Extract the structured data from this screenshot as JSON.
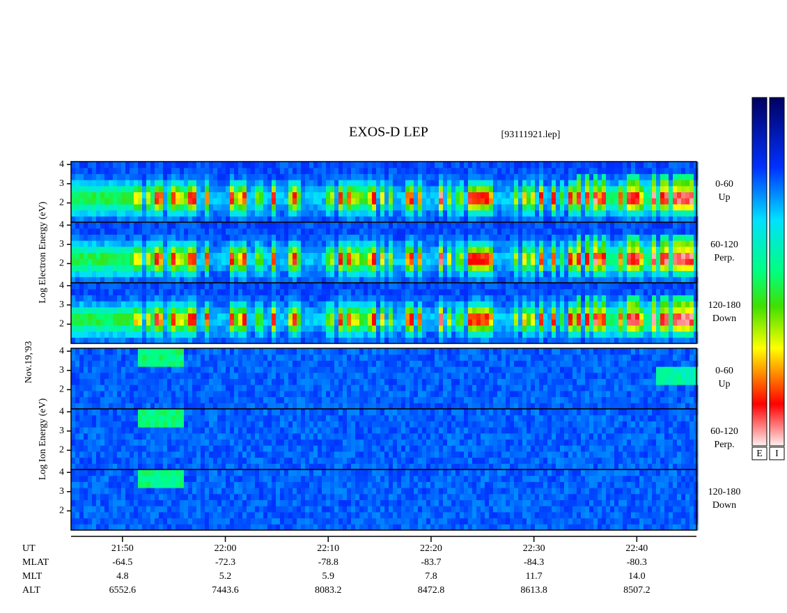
{
  "chart_data": {
    "type": "spectrogram",
    "title": "EXOS-D LEP",
    "subtitle": "[93111921.lep]",
    "date_label": "Nov.19,'93",
    "xlim": [
      1305,
      1365.8
    ],
    "xticks": [
      {
        "value": 1310,
        "label": "21:50"
      },
      {
        "value": 1320,
        "label": "22:00"
      },
      {
        "value": 1330,
        "label": "22:10"
      },
      {
        "value": 1340,
        "label": "22:20"
      },
      {
        "value": 1350,
        "label": "22:30"
      },
      {
        "value": 1360,
        "label": "22:40"
      }
    ],
    "groups": [
      {
        "ylabel": "Log  Electron  Energy (eV)",
        "species": "electron",
        "panels": [
          {
            "ylim": [
              1,
              4.15
            ],
            "yticks": [
              2,
              3,
              4
            ],
            "angle": "0-60",
            "direction": "Up"
          },
          {
            "ylim": [
              1,
              4.15
            ],
            "yticks": [
              2,
              3,
              4
            ],
            "angle": "60-120",
            "direction": "Perp."
          },
          {
            "ylim": [
              1,
              4.15
            ],
            "yticks": [
              2,
              3,
              4
            ],
            "angle": "120-180",
            "direction": "Down"
          }
        ]
      },
      {
        "ylabel": "Log  Ion  Energy (eV)",
        "species": "ion",
        "panels": [
          {
            "ylim": [
              1,
              4.15
            ],
            "yticks": [
              2,
              3,
              4
            ],
            "angle": "0-60",
            "direction": "Up"
          },
          {
            "ylim": [
              1,
              4.15
            ],
            "yticks": [
              2,
              3,
              4
            ],
            "angle": "60-120",
            "direction": "Perp."
          },
          {
            "ylim": [
              1,
              4.15
            ],
            "yticks": [
              2,
              3,
              4
            ],
            "angle": "120-180",
            "direction": "Down"
          }
        ]
      }
    ],
    "orbit": {
      "row_labels": [
        "UT",
        "MLAT",
        "MLT",
        "ALT"
      ],
      "mlat": [
        "-64.5",
        "-72.3",
        "-78.8",
        "-83.7",
        "-84.3",
        "-80.3"
      ],
      "mlt": [
        "4.8",
        "5.2",
        "5.9",
        "7.8",
        "11.7",
        "14.0"
      ],
      "alt": [
        "6552.6",
        "7443.6",
        "8083.2",
        "8472.8",
        "8613.8",
        "8507.2"
      ]
    },
    "colorbars": [
      "E",
      "I"
    ]
  }
}
